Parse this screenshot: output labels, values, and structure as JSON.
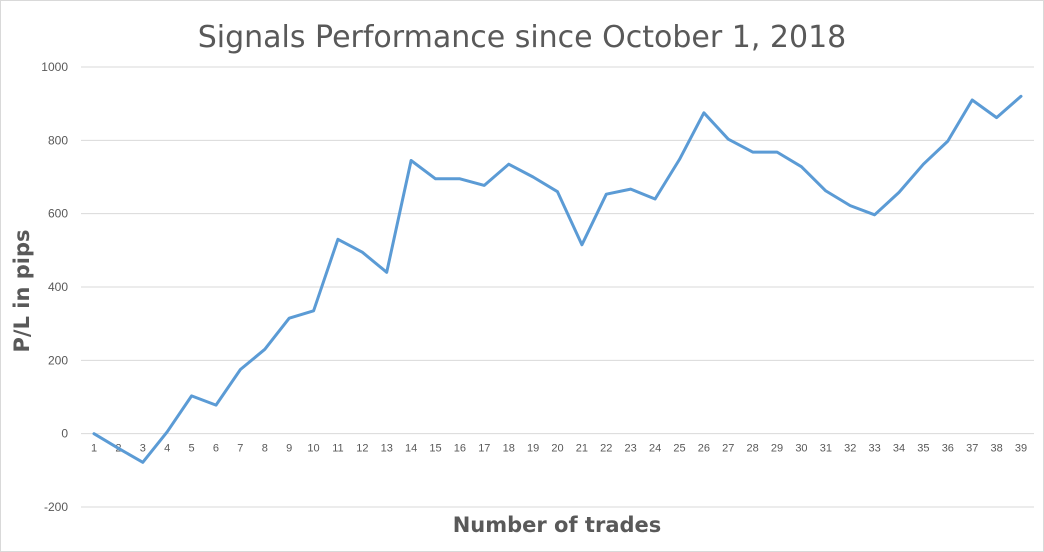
{
  "chart_data": {
    "type": "line",
    "title": "Signals Performance since October 1, 2018",
    "xlabel": "Number of trades",
    "ylabel": "P/L in pips",
    "ylim": [
      -200,
      1000
    ],
    "y_ticks": [
      -200,
      0,
      200,
      400,
      600,
      800,
      1000
    ],
    "grid": true,
    "legend": "none",
    "colors": {
      "series": "#5b9bd5",
      "grid": "#d9d9d9",
      "text": "#595959"
    },
    "categories": [
      "1",
      "2",
      "3",
      "4",
      "5",
      "6",
      "7",
      "8",
      "9",
      "10",
      "11",
      "12",
      "13",
      "14",
      "15",
      "16",
      "17",
      "18",
      "19",
      "20",
      "21",
      "22",
      "23",
      "24",
      "25",
      "26",
      "27",
      "28",
      "29",
      "30",
      "31",
      "32",
      "33",
      "34",
      "35",
      "36",
      "37",
      "38",
      "39"
    ],
    "series": [
      {
        "values": [
          0,
          -40,
          -78,
          5,
          103,
          78,
          175,
          230,
          315,
          335,
          530,
          495,
          440,
          745,
          695,
          695,
          677,
          735,
          700,
          660,
          515,
          653,
          667,
          640,
          748,
          875,
          803,
          768,
          768,
          728,
          662,
          622,
          597,
          658,
          735,
          798,
          910,
          862,
          920
        ]
      }
    ]
  }
}
